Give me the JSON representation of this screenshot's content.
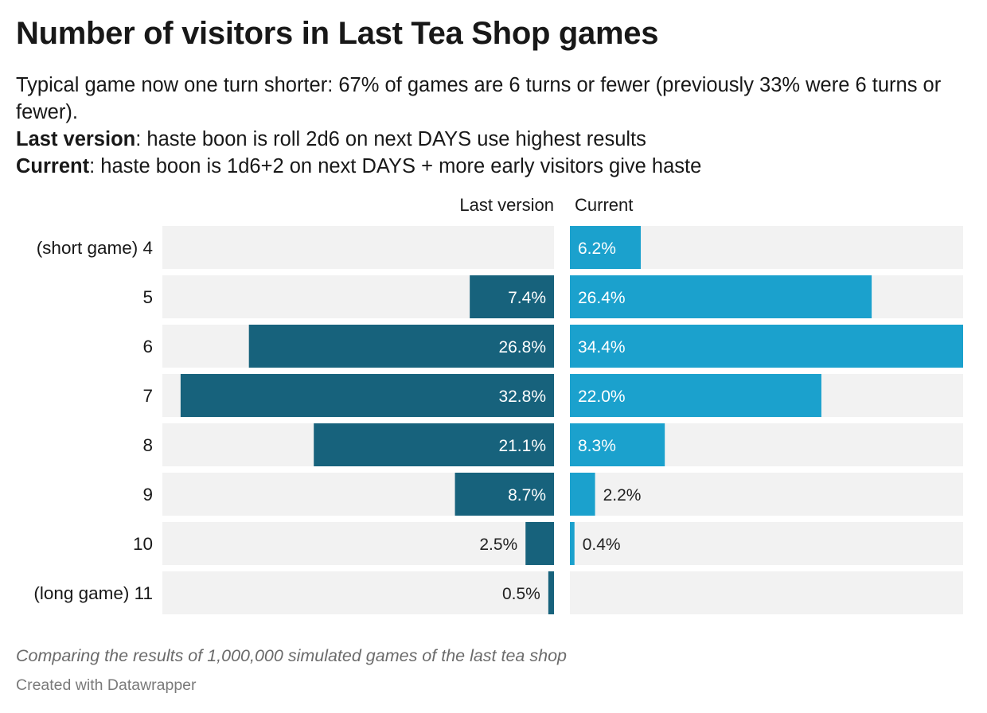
{
  "header": {
    "title": "Number of visitors in Last Tea Shop games",
    "line1": "Typical game now one turn shorter: 67% of games are 6 turns or fewer (previously 33% were 6 turns or fewer).",
    "line2_bold": "Last version",
    "line2_rest": ": haste boon is roll 2d6 on next DAYS use highest results",
    "line3_bold": "Current",
    "line3_rest": ": haste boon is 1d6+2 on next DAYS + more early visitors give haste"
  },
  "chart_data": {
    "type": "bar",
    "orientation": "horizontal",
    "categories": [
      "(short game) 4",
      "5",
      "6",
      "7",
      "8",
      "9",
      "10",
      "(long game) 11"
    ],
    "series": [
      {
        "name": "Last version",
        "values": [
          null,
          7.4,
          26.8,
          32.8,
          21.1,
          8.7,
          2.5,
          0.5
        ],
        "labels": [
          "",
          "7.4%",
          "26.8%",
          "32.8%",
          "21.1%",
          "8.7%",
          "2.5%",
          "0.5%"
        ],
        "color": "#17627c",
        "direction": "right-to-left"
      },
      {
        "name": "Current",
        "values": [
          6.2,
          26.4,
          34.4,
          22.0,
          8.3,
          2.2,
          0.4,
          null
        ],
        "labels": [
          "6.2%",
          "26.4%",
          "34.4%",
          "22.0%",
          "8.3%",
          "2.2%",
          "0.4%",
          ""
        ],
        "color": "#1ba1cd",
        "direction": "left-to-right"
      }
    ],
    "xlim": [
      0,
      34.4
    ],
    "background_bar_color": "#f2f2f2",
    "grid": false,
    "legend": "column headers"
  },
  "footer": {
    "notes": "Comparing the results of 1,000,000 simulated games of the last tea shop",
    "credit": "Created with Datawrapper"
  }
}
